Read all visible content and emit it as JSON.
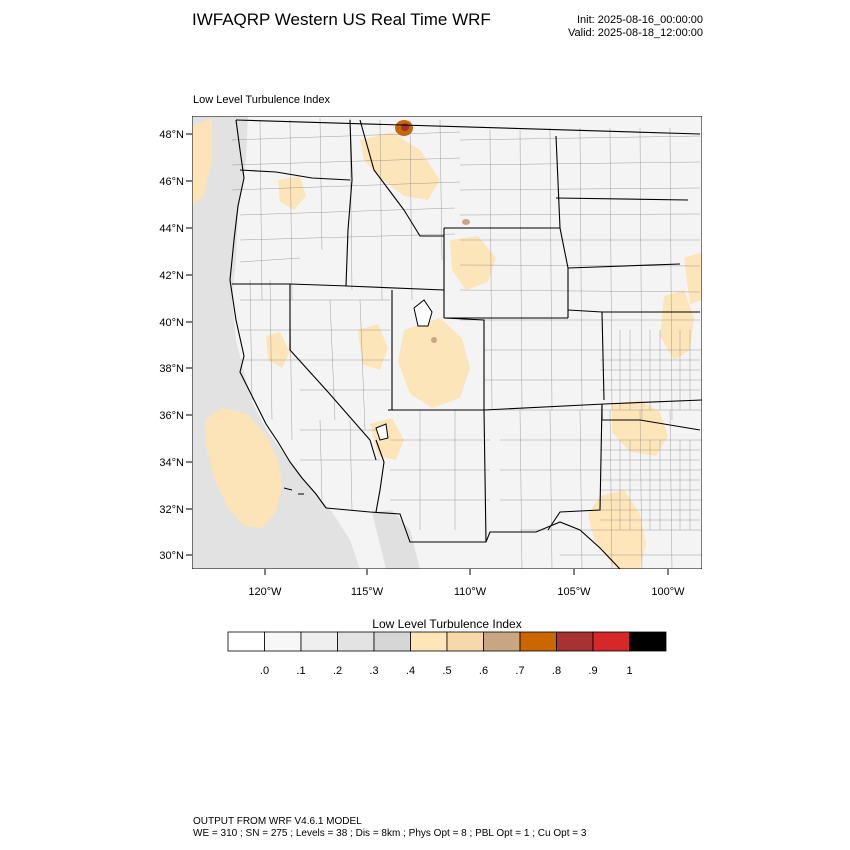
{
  "header": {
    "title": "IWFAQRP Western US Real Time WRF",
    "init": "Init: 2025-08-16_00:00:00",
    "valid": "Valid: 2025-08-18_12:00:00"
  },
  "field_label": "Low Level Turbulence Index",
  "map": {
    "lat_labels": [
      "48°N",
      "46°N",
      "44°N",
      "42°N",
      "40°N",
      "38°N",
      "36°N",
      "34°N",
      "32°N",
      "30°N"
    ],
    "lon_labels": [
      "120°W",
      "115°W",
      "110°W",
      "105°W",
      "100°W"
    ]
  },
  "colorbar": {
    "title": "Low Level Turbulence Index",
    "colors": [
      "#ffffff",
      "#f7f7f7",
      "#efefef",
      "#e3e3e3",
      "#d6d6d6",
      "#ffe6b8",
      "#f6d8aa",
      "#c8a684",
      "#cc6600",
      "#a63232",
      "#d62828",
      "#000000"
    ],
    "labels": [
      ".0",
      ".1",
      ".2",
      ".3",
      ".4",
      ".5",
      ".6",
      ".7",
      ".8",
      ".9",
      "1"
    ]
  },
  "footer": {
    "line1": "OUTPUT FROM WRF V4.6.1 MODEL",
    "line2": "WE = 310 ; SN = 275 ; Levels = 38 ; Dis = 8km ; Phys Opt = 8 ; PBL Opt = 1 ; Cu Opt = 3"
  }
}
